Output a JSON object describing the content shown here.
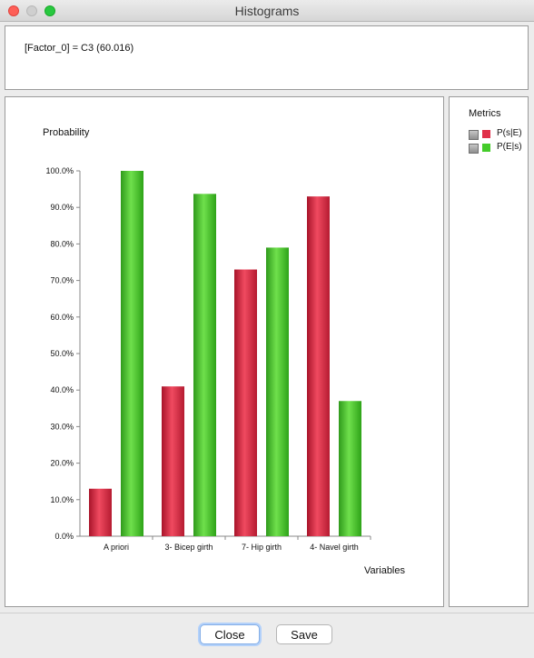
{
  "window": {
    "title": "Histograms"
  },
  "info": {
    "text": "[Factor_0] = C3 (60.016)"
  },
  "legend": {
    "title": "Metrics",
    "items": [
      {
        "label": "P(s|E)",
        "color": "#e02f48"
      },
      {
        "label": "P(E|s)",
        "color": "#44cc2a"
      }
    ]
  },
  "buttons": {
    "close": "Close",
    "save": "Save"
  },
  "chart_data": {
    "type": "bar",
    "ylabel": "Probability",
    "xlabel": "Variables",
    "categories": [
      "A priori",
      "3- Bicep girth",
      "7- Hip girth",
      "4- Navel girth"
    ],
    "series": [
      {
        "name": "P(s|E)",
        "color": "#e02f48",
        "values": [
          13.0,
          41.0,
          73.0,
          93.0
        ]
      },
      {
        "name": "P(E|s)",
        "color": "#44cc2a",
        "values": [
          100.0,
          93.7,
          79.0,
          37.0
        ]
      }
    ],
    "yticks": [
      "0.0%",
      "10.0%",
      "20.0%",
      "30.0%",
      "40.0%",
      "50.0%",
      "60.0%",
      "70.0%",
      "80.0%",
      "90.0%",
      "100.0%"
    ],
    "ylim": [
      0,
      100
    ],
    "grid": false,
    "legend": "right"
  }
}
